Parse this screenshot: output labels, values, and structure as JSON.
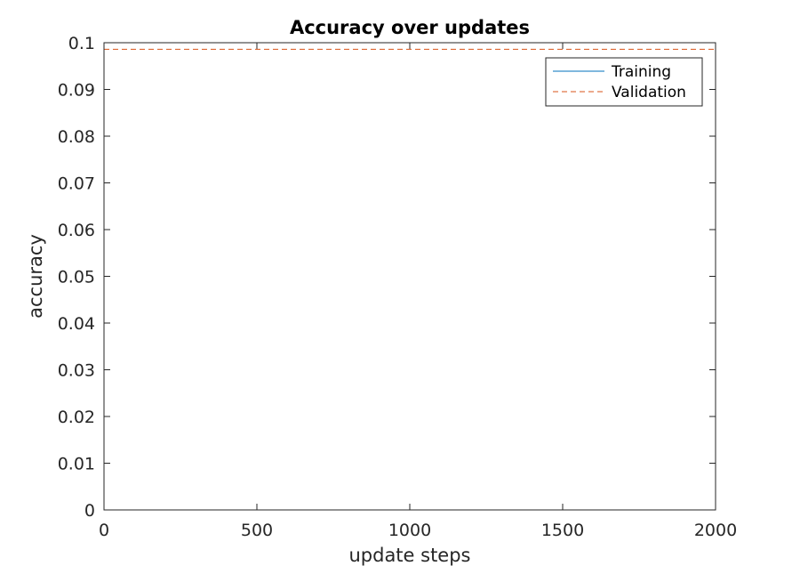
{
  "chart_data": {
    "type": "line",
    "title": "Accuracy over updates",
    "xlabel": "update steps",
    "ylabel": "accuracy",
    "xlim": [
      0,
      2000
    ],
    "ylim": [
      0,
      0.1
    ],
    "x_ticks": [
      0,
      500,
      1000,
      1500,
      2000
    ],
    "x_tick_labels": [
      "0",
      "500",
      "1000",
      "1500",
      "2000"
    ],
    "y_ticks": [
      0,
      0.01,
      0.02,
      0.03,
      0.04,
      0.05,
      0.06,
      0.07,
      0.08,
      0.09,
      0.1
    ],
    "y_tick_labels": [
      "0",
      "0.01",
      "0.02",
      "0.03",
      "0.04",
      "0.05",
      "0.06",
      "0.07",
      "0.08",
      "0.09",
      "0.1"
    ],
    "grid": false,
    "legend_position": "top-right",
    "series": [
      {
        "name": "Training",
        "color": "#0072BD",
        "line_style": "solid",
        "x": [
          0,
          2000
        ],
        "y": [
          0.1,
          0.1
        ]
      },
      {
        "name": "Validation",
        "color": "#D95319",
        "line_style": "dashed",
        "x": [
          0,
          2000
        ],
        "y": [
          0.0986,
          0.0986
        ]
      }
    ]
  }
}
